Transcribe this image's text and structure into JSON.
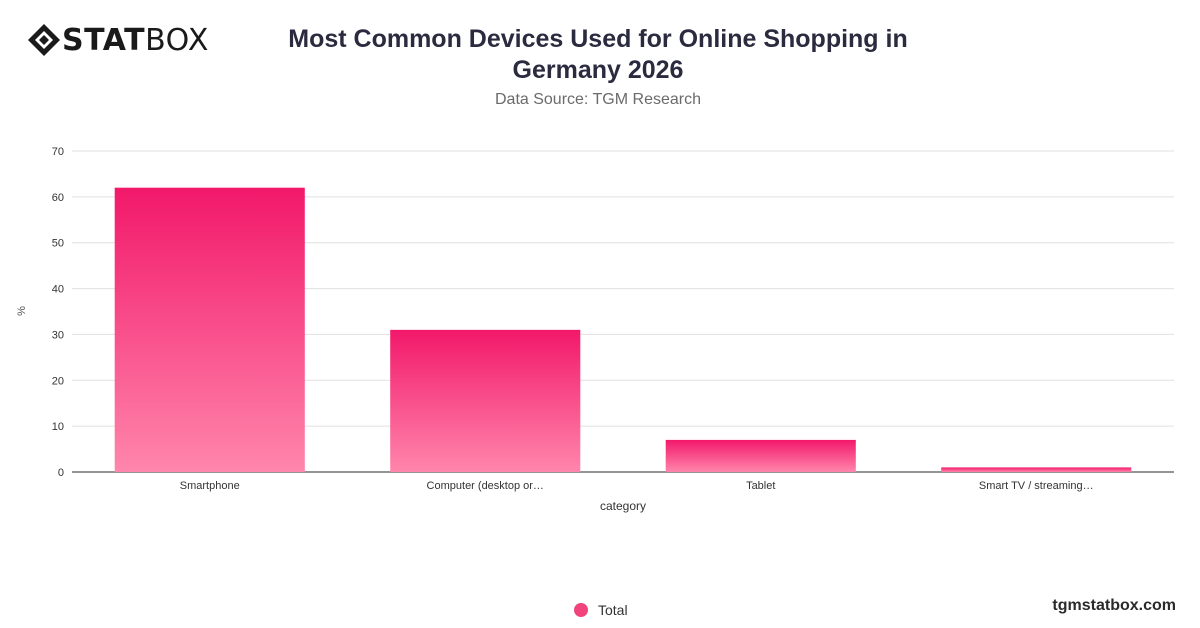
{
  "brand": {
    "bold": "STAT",
    "light": "BOX",
    "icon": "statbox-diamond-icon"
  },
  "title": "Most Common Devices Used for Online Shopping in Germany 2026",
  "subtitle": "Data Source: TGM Research",
  "watermark": "tgmstatbox.com",
  "legend": {
    "label": "Total"
  },
  "colors": {
    "bar_top": "#f2186a",
    "bar_bottom": "#ff86ac",
    "grid": "#e0e0e0",
    "axis": "#555555"
  },
  "chart_data": {
    "type": "bar",
    "categories": [
      "Smartphone",
      "Computer (desktop or…",
      "Tablet",
      "Smart TV / streaming…"
    ],
    "series": [
      {
        "name": "Total",
        "values": [
          62,
          31,
          7,
          1
        ]
      }
    ],
    "xlabel": "category",
    "ylabel": "%",
    "ylim": [
      0,
      70
    ],
    "yticks": [
      0,
      10,
      20,
      30,
      40,
      50,
      60,
      70
    ],
    "grid": true,
    "legend_position": "bottom"
  }
}
